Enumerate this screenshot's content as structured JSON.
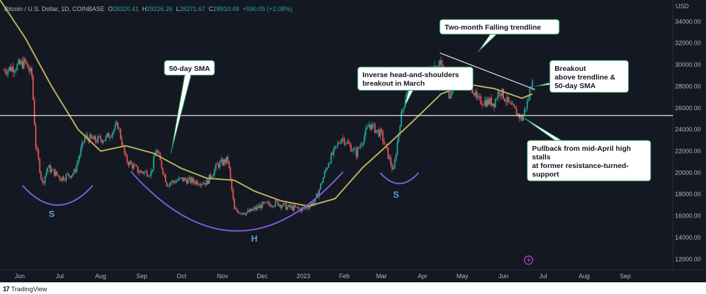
{
  "header": {
    "symbol": "Bitcoin / U.S. Dollar, 1D, COINBASE",
    "open_label": "O",
    "open": "28320.41",
    "high_label": "H",
    "high": "29226.26",
    "low_label": "L",
    "low": "28271.67",
    "close_label": "C",
    "close": "28910.48",
    "change": "+590.05 (+2.08%)"
  },
  "footer": {
    "brand_logo": "17",
    "brand": "TradingView"
  },
  "chart_data": {
    "type": "candlestick",
    "title": "",
    "ylabel": "USD",
    "ylim": [
      11000,
      36000
    ],
    "y_ticks": [
      "12000.00",
      "14000.00",
      "16000.00",
      "18000.00",
      "20000.00",
      "22000.00",
      "24000.00",
      "26000.00",
      "28000.00",
      "30000.00",
      "32000.00",
      "34000.00"
    ],
    "x_ticks": [
      "Jun",
      "Jul",
      "Aug",
      "Sep",
      "Oct",
      "Nov",
      "Dec",
      "2023",
      "Feb",
      "Mar",
      "Apr",
      "May",
      "Jun",
      "Jul",
      "Aug",
      "Sep"
    ],
    "x_range": [
      "2022-05-17",
      "2023-10-07"
    ],
    "price_path": [
      [
        "2022-05-20",
        29500
      ],
      [
        "2022-05-28",
        29800
      ],
      [
        "2022-06-05",
        30200
      ],
      [
        "2022-06-10",
        29000
      ],
      [
        "2022-06-13",
        22500
      ],
      [
        "2022-06-18",
        19000
      ],
      [
        "2022-06-22",
        20500
      ],
      [
        "2022-07-02",
        19500
      ],
      [
        "2022-07-12",
        20000
      ],
      [
        "2022-07-20",
        23300
      ],
      [
        "2022-07-28",
        23000
      ],
      [
        "2022-08-05",
        23200
      ],
      [
        "2022-08-14",
        24400
      ],
      [
        "2022-08-20",
        21200
      ],
      [
        "2022-08-30",
        20100
      ],
      [
        "2022-09-08",
        20000
      ],
      [
        "2022-09-12",
        22200
      ],
      [
        "2022-09-20",
        19000
      ],
      [
        "2022-10-01",
        19400
      ],
      [
        "2022-10-10",
        19200
      ],
      [
        "2022-10-20",
        19100
      ],
      [
        "2022-10-28",
        20700
      ],
      [
        "2022-11-05",
        21200
      ],
      [
        "2022-11-10",
        16500
      ],
      [
        "2022-11-20",
        16300
      ],
      [
        "2022-12-01",
        17000
      ],
      [
        "2022-12-12",
        17200
      ],
      [
        "2022-12-20",
        16800
      ],
      [
        "2023-01-01",
        16600
      ],
      [
        "2023-01-10",
        17400
      ],
      [
        "2023-01-20",
        21000
      ],
      [
        "2023-01-30",
        23300
      ],
      [
        "2023-02-10",
        21800
      ],
      [
        "2023-02-20",
        24500
      ],
      [
        "2023-03-01",
        23500
      ],
      [
        "2023-03-10",
        20100
      ],
      [
        "2023-03-15",
        24700
      ],
      [
        "2023-03-21",
        28200
      ],
      [
        "2023-03-31",
        28500
      ],
      [
        "2023-04-14",
        30400
      ],
      [
        "2023-04-21",
        27300
      ],
      [
        "2023-04-28",
        29300
      ],
      [
        "2023-05-07",
        28500
      ],
      [
        "2023-05-12",
        26700
      ],
      [
        "2023-05-25",
        26500
      ],
      [
        "2023-05-29",
        27700
      ],
      [
        "2023-06-06",
        26200
      ],
      [
        "2023-06-15",
        25000
      ],
      [
        "2023-06-20",
        26900
      ],
      [
        "2023-06-23",
        29000
      ]
    ],
    "sma_50_path": [
      [
        "2022-05-17",
        36000
      ],
      [
        "2022-06-05",
        32500
      ],
      [
        "2022-06-25",
        28000
      ],
      [
        "2022-07-15",
        24000
      ],
      [
        "2022-08-01",
        22000
      ],
      [
        "2022-08-20",
        22500
      ],
      [
        "2022-09-10",
        21800
      ],
      [
        "2022-10-01",
        20400
      ],
      [
        "2022-10-20",
        19500
      ],
      [
        "2022-11-10",
        19300
      ],
      [
        "2022-11-25",
        18300
      ],
      [
        "2022-12-15",
        17400
      ],
      [
        "2023-01-05",
        16900
      ],
      [
        "2023-01-25",
        17600
      ],
      [
        "2023-02-15",
        20500
      ],
      [
        "2023-03-05",
        22500
      ],
      [
        "2023-03-25",
        24800
      ],
      [
        "2023-04-15",
        27300
      ],
      [
        "2023-05-05",
        28200
      ],
      [
        "2023-05-25",
        27800
      ],
      [
        "2023-06-15",
        26900
      ],
      [
        "2023-06-23",
        27300
      ]
    ],
    "horizontal_level": 25300,
    "trendline": [
      [
        "2023-04-14",
        31100
      ],
      [
        "2023-06-25",
        27700
      ]
    ],
    "shoulder_arcs": [
      {
        "from": "2022-06-03",
        "to": "2022-07-26",
        "peak": 17000
      },
      {
        "from": "2022-08-24",
        "to": "2023-01-31",
        "peak": 14600
      },
      {
        "from": "2023-02-28",
        "to": "2023-03-29",
        "peak": 19000
      }
    ],
    "pattern_labels": [
      {
        "text": "S",
        "date": "2022-06-25",
        "price": 15900
      },
      {
        "text": "H",
        "date": "2022-11-25",
        "price": 13600
      },
      {
        "text": "S",
        "date": "2023-03-12",
        "price": 17700
      }
    ],
    "annotations": [
      {
        "lines": [
          "Two-month Falling trendline"
        ],
        "box_date": "2023-04-14",
        "box_price": 34200,
        "pointer": [
          "2023-05-13",
          31200
        ]
      },
      {
        "lines": [
          "50-day SMA"
        ],
        "box_date": "2022-09-18",
        "box_price": 30400,
        "pointer": [
          "2022-09-23",
          21800
        ]
      },
      {
        "lines": [
          "Inverse head-and-shoulders",
          "breakout in March"
        ],
        "box_date": "2023-02-11",
        "box_price": 29800,
        "pointer": [
          "2023-03-18",
          26000
        ]
      },
      {
        "lines": [
          "Breakout",
          "above trendline &",
          "50-day SMA"
        ],
        "box_date": "2023-07-06",
        "box_price": 30400,
        "pointer": [
          "2023-06-25",
          28000
        ]
      },
      {
        "lines": [
          "Pullback from mid-April high",
          "stalls",
          "at former resistance-turned-",
          "support"
        ],
        "box_date": "2023-06-19",
        "box_price": 23000,
        "pointer": [
          "2023-06-15",
          25200
        ]
      }
    ],
    "legend": "none",
    "grid": false
  },
  "colors": {
    "background": "#141823",
    "up": "#26a69a",
    "down": "#ef5350",
    "sma": "#bfb15a",
    "level": "#e8e8e8",
    "trendline": "#d8d8d8",
    "arc": "#7b5fd6",
    "pattern_label": "#5b9bd5",
    "callout_bg": "#ffffff",
    "callout_border": "#1e8e5a"
  }
}
